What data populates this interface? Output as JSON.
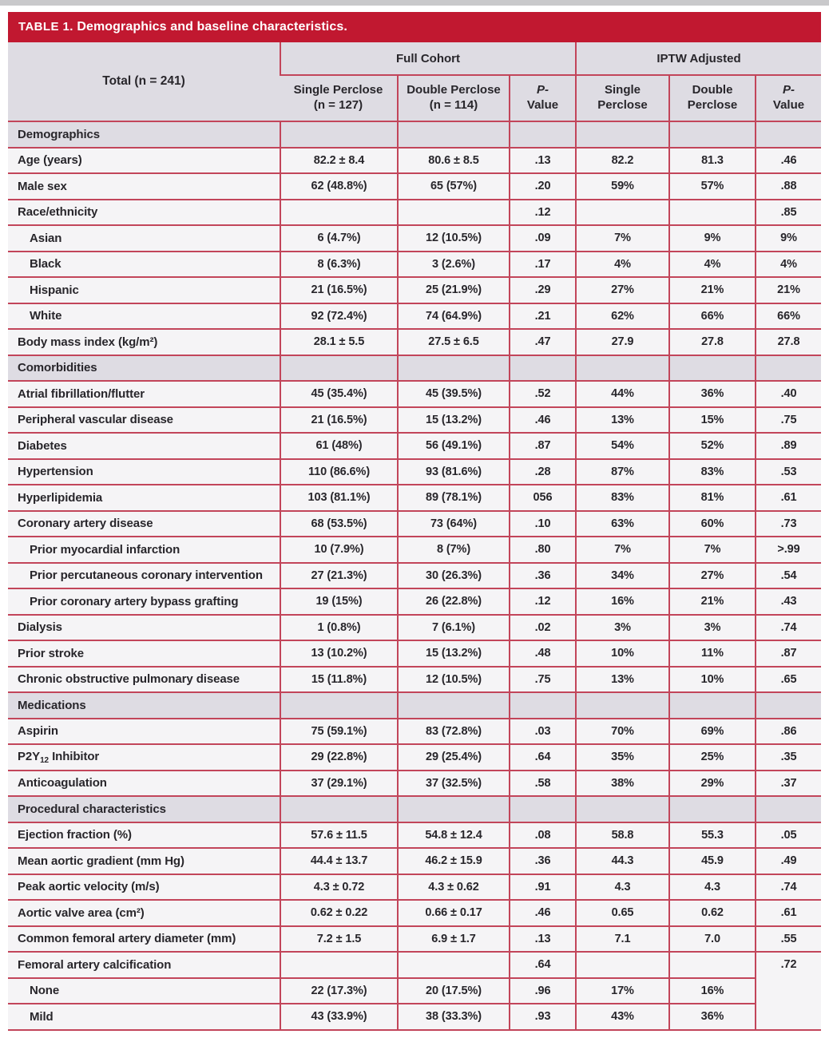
{
  "colors": {
    "title_bar_bg": "#C11830",
    "title_text": "#FFFFFF",
    "grid_border": "#C2455A",
    "section_row_bg": "#DEDCE3",
    "data_row_bg": "#F5F4F6",
    "body_text": "#28262B"
  },
  "table": {
    "title_prefix": "TABLE 1.",
    "title_text": "Demographics and baseline characteristics.",
    "header": {
      "total": "Total (n = 241)",
      "groups": [
        "Full Cohort",
        "IPTW Adjusted"
      ],
      "subheaders": [
        {
          "line1": "Single Perclose",
          "line2": "(n = 127)",
          "italic": false
        },
        {
          "line1": "Double Perclose",
          "line2": "(n = 114)",
          "italic": false
        },
        {
          "line1": "P-",
          "line2": "Value",
          "italic": true
        },
        {
          "line1": "Single",
          "line2": "Perclose",
          "italic": false
        },
        {
          "line1": "Double",
          "line2": "Perclose",
          "italic": false
        },
        {
          "line1": "P-",
          "line2": "Value",
          "italic": true
        }
      ],
      "column_keys": [
        "single-perclose-full",
        "double-perclose-full",
        "p-value-full",
        "single-perclose-iptw",
        "double-perclose-iptw",
        "p-value-iptw"
      ]
    },
    "rows": [
      {
        "section": "Demographics"
      },
      {
        "label": "Age (years)",
        "indent": false,
        "cells": [
          "82.2 ± 8.4",
          "80.6 ± 8.5",
          ".13",
          "82.2",
          "81.3",
          ".46"
        ]
      },
      {
        "label": "Male sex",
        "indent": false,
        "cells": [
          "62 (48.8%)",
          "65 (57%)",
          ".20",
          "59%",
          "57%",
          ".88"
        ]
      },
      {
        "label": "Race/ethnicity",
        "indent": false,
        "cells": [
          "",
          "",
          ".12",
          "",
          "",
          ".85"
        ]
      },
      {
        "label": "Asian",
        "indent": true,
        "cells": [
          "6 (4.7%)",
          "12 (10.5%)",
          ".09",
          "7%",
          "9%",
          "9%"
        ]
      },
      {
        "label": "Black",
        "indent": true,
        "cells": [
          "8 (6.3%)",
          "3 (2.6%)",
          ".17",
          "4%",
          "4%",
          "4%"
        ]
      },
      {
        "label": "Hispanic",
        "indent": true,
        "cells": [
          "21 (16.5%)",
          "25 (21.9%)",
          ".29",
          "27%",
          "21%",
          "21%"
        ]
      },
      {
        "label": "White",
        "indent": true,
        "cells": [
          "92 (72.4%)",
          "74 (64.9%)",
          ".21",
          "62%",
          "66%",
          "66%"
        ]
      },
      {
        "label": "Body mass index (kg/m²)",
        "indent": false,
        "cells": [
          "28.1 ± 5.5",
          "27.5 ± 6.5",
          ".47",
          "27.9",
          "27.8",
          "27.8"
        ]
      },
      {
        "section": "Comorbidities"
      },
      {
        "label": "Atrial fibrillation/flutter",
        "indent": false,
        "cells": [
          "45 (35.4%)",
          "45 (39.5%)",
          ".52",
          "44%",
          "36%",
          ".40"
        ]
      },
      {
        "label": "Peripheral vascular disease",
        "indent": false,
        "cells": [
          "21 (16.5%)",
          "15 (13.2%)",
          ".46",
          "13%",
          "15%",
          ".75"
        ]
      },
      {
        "label": "Diabetes",
        "indent": false,
        "cells": [
          "61 (48%)",
          "56 (49.1%)",
          ".87",
          "54%",
          "52%",
          ".89"
        ]
      },
      {
        "label": "Hypertension",
        "indent": false,
        "cells": [
          "110 (86.6%)",
          "93 (81.6%)",
          ".28",
          "87%",
          "83%",
          ".53"
        ]
      },
      {
        "label": "Hyperlipidemia",
        "indent": false,
        "cells": [
          "103 (81.1%)",
          "89 (78.1%)",
          "056",
          "83%",
          "81%",
          ".61"
        ]
      },
      {
        "label": "Coronary artery disease",
        "indent": false,
        "cells": [
          "68 (53.5%)",
          "73 (64%)",
          ".10",
          "63%",
          "60%",
          ".73"
        ]
      },
      {
        "label": "Prior myocardial infarction",
        "indent": true,
        "cells": [
          "10 (7.9%)",
          "8 (7%)",
          ".80",
          "7%",
          "7%",
          ">.99"
        ]
      },
      {
        "label": "Prior percutaneous coronary intervention",
        "indent": true,
        "cells": [
          "27 (21.3%)",
          "30 (26.3%)",
          ".36",
          "34%",
          "27%",
          ".54"
        ]
      },
      {
        "label": "Prior coronary artery bypass grafting",
        "indent": true,
        "cells": [
          "19 (15%)",
          "26 (22.8%)",
          ".12",
          "16%",
          "21%",
          ".43"
        ]
      },
      {
        "label": "Dialysis",
        "indent": false,
        "cells": [
          "1 (0.8%)",
          "7 (6.1%)",
          ".02",
          "3%",
          "3%",
          ".74"
        ]
      },
      {
        "label": "Prior stroke",
        "indent": false,
        "cells": [
          "13 (10.2%)",
          "15 (13.2%)",
          ".48",
          "10%",
          "11%",
          ".87"
        ]
      },
      {
        "label": "Chronic obstructive pulmonary disease",
        "indent": false,
        "cells": [
          "15 (11.8%)",
          "12 (10.5%)",
          ".75",
          "13%",
          "10%",
          ".65"
        ]
      },
      {
        "section": "Medications"
      },
      {
        "label": "Aspirin",
        "indent": false,
        "cells": [
          "75 (59.1%)",
          "83 (72.8%)",
          ".03",
          "70%",
          "69%",
          ".86"
        ]
      },
      {
        "label": "P2Y₁₂ Inhibitor",
        "indent": false,
        "cells": [
          "29 (22.8%)",
          "29 (25.4%)",
          ".64",
          "35%",
          "25%",
          ".35"
        ]
      },
      {
        "label": "Anticoagulation",
        "indent": false,
        "cells": [
          "37 (29.1%)",
          "37 (32.5%)",
          ".58",
          "38%",
          "29%",
          ".37"
        ]
      },
      {
        "section": "Procedural characteristics"
      },
      {
        "label": "Ejection fraction (%)",
        "indent": false,
        "cells": [
          "57.6 ± 11.5",
          "54.8 ± 12.4",
          ".08",
          "58.8",
          "55.3",
          ".05"
        ]
      },
      {
        "label": "Mean aortic gradient (mm Hg)",
        "indent": false,
        "cells": [
          "44.4 ± 13.7",
          "46.2 ± 15.9",
          ".36",
          "44.3",
          "45.9",
          ".49"
        ]
      },
      {
        "label": "Peak aortic velocity (m/s)",
        "indent": false,
        "cells": [
          "4.3 ± 0.72",
          "4.3 ± 0.62",
          ".91",
          "4.3",
          "4.3",
          ".74"
        ]
      },
      {
        "label": "Aortic valve area (cm²)",
        "indent": false,
        "cells": [
          "0.62 ± 0.22",
          "0.66 ± 0.17",
          ".46",
          "0.65",
          "0.62",
          ".61"
        ]
      },
      {
        "label": "Common femoral artery diameter (mm)",
        "indent": false,
        "cells": [
          "7.2 ± 1.5",
          "6.9 ± 1.7",
          ".13",
          "7.1",
          "7.0",
          ".55"
        ]
      },
      {
        "label": "Femoral artery calcification",
        "indent": false,
        "cells": [
          "",
          "",
          ".64",
          "",
          ""
        ],
        "last": ".72",
        "last_rowspan": 3
      },
      {
        "label": "None",
        "indent": true,
        "cells": [
          "22 (17.3%)",
          "20 (17.5%)",
          ".96",
          "17%",
          "16%"
        ],
        "no_last": true
      },
      {
        "label": "Mild",
        "indent": true,
        "cells": [
          "43 (33.9%)",
          "38 (33.3%)",
          ".93",
          "43%",
          "36%"
        ],
        "no_last": true
      }
    ]
  }
}
